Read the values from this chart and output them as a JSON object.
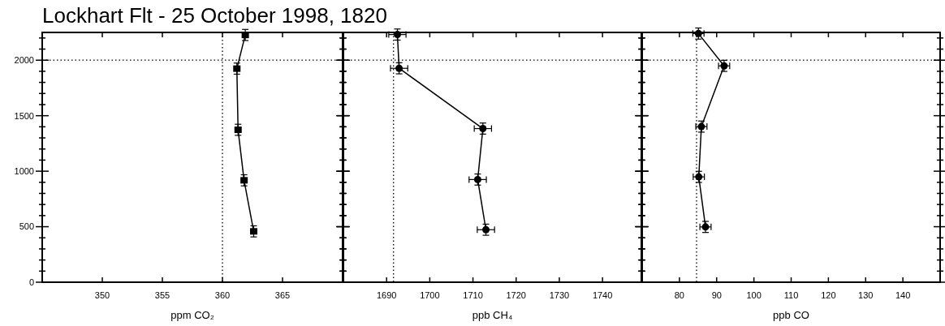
{
  "chart_data": [
    {
      "type": "line",
      "title": "Lockhart Flt - 25 October 1998, 1820",
      "xlabel": "ppm CO₂",
      "marker": "square",
      "line_style": "solid",
      "xlim": [
        345,
        370
      ],
      "xticks": [
        350,
        355,
        360,
        365
      ],
      "ylim": [
        0,
        2250
      ],
      "yticks": [
        0,
        {
          "value": 100,
          "label": null
        },
        {
          "value": 200,
          "label": null
        },
        {
          "value": 300,
          "label": null
        },
        {
          "value": 400,
          "label": null
        },
        500,
        {
          "value": 600,
          "label": null
        },
        {
          "value": 700,
          "label": null
        },
        {
          "value": 800,
          "label": null
        },
        {
          "value": 900,
          "label": null
        },
        1000,
        {
          "value": 1100,
          "label": null
        },
        {
          "value": 1200,
          "label": null
        },
        {
          "value": 1300,
          "label": null
        },
        {
          "value": 1400,
          "label": null
        },
        1500,
        {
          "value": 1600,
          "label": null
        },
        {
          "value": 1700,
          "label": null
        },
        {
          "value": 1800,
          "label": null
        },
        {
          "value": 1900,
          "label": null
        },
        2000,
        {
          "value": 2100,
          "label": null
        },
        {
          "value": 2200,
          "label": null
        }
      ],
      "ref_lines": [
        {
          "axis": "x",
          "value": 360,
          "line_style": "dotted"
        },
        {
          "axis": "y",
          "value": 2000,
          "line_style": "dotted"
        }
      ],
      "series": [
        {
          "color": "#000000",
          "x": [
            361.9,
            361.2,
            361.3,
            361.8,
            362.6
          ],
          "values": [
            2227,
            1924,
            1373,
            918,
            458
          ],
          "errors": [
            50,
            50,
            50,
            50,
            50
          ]
        }
      ]
    },
    {
      "type": "line",
      "xlabel": "ppb CH₄",
      "marker": "circle",
      "line_style": "solid",
      "tick_labels": "x",
      "xlim": [
        1680,
        1749
      ],
      "xticks": [
        1690,
        1700,
        1710,
        1720,
        1730,
        1740
      ],
      "ylim": [
        0,
        2250
      ],
      "yticks": [
        {
          "value": 0,
          "label": null
        },
        {
          "value": 100,
          "label": null
        },
        {
          "value": 200,
          "label": null
        },
        {
          "value": 300,
          "label": null
        },
        {
          "value": 400,
          "label": null
        },
        {
          "value": 500,
          "label": null
        },
        {
          "value": 600,
          "label": null
        },
        {
          "value": 700,
          "label": null
        },
        {
          "value": 800,
          "label": null
        },
        {
          "value": 900,
          "label": null
        },
        {
          "value": 1000,
          "label": null
        },
        {
          "value": 1100,
          "label": null
        },
        {
          "value": 1200,
          "label": null
        },
        {
          "value": 1300,
          "label": null
        },
        {
          "value": 1400,
          "label": null
        },
        {
          "value": 1500,
          "label": null
        },
        {
          "value": 1600,
          "label": null
        },
        {
          "value": 1700,
          "label": null
        },
        {
          "value": 1800,
          "label": null
        },
        {
          "value": 1900,
          "label": null
        },
        {
          "value": 2000,
          "label": null
        },
        {
          "value": 2100,
          "label": null
        },
        {
          "value": 2200,
          "label": null
        }
      ],
      "ref_lines": [
        {
          "axis": "x",
          "value": 1691.6,
          "line_style": "dotted"
        },
        {
          "axis": "y",
          "value": 2000,
          "line_style": "dotted"
        }
      ],
      "series": [
        {
          "color": "#000000",
          "x": [
            1692.5,
            1692.9,
            1712.3,
            1711.1,
            1713.0
          ],
          "values": [
            2231,
            1927,
            1384,
            925,
            473
          ],
          "errors": [
            50,
            50,
            50,
            50,
            50
          ],
          "xerrors": [
            2,
            2,
            2,
            2,
            2
          ]
        }
      ]
    },
    {
      "type": "line",
      "xlabel": "ppb CO",
      "marker": "circle",
      "line_style": "solid",
      "tick_labels": "x",
      "xlim": [
        70,
        150
      ],
      "xticks": [
        80,
        90,
        100,
        110,
        120,
        130,
        140
      ],
      "ylim": [
        0,
        2250
      ],
      "yticks": [
        {
          "value": 0,
          "label": null
        },
        {
          "value": 100,
          "label": null
        },
        {
          "value": 200,
          "label": null
        },
        {
          "value": 300,
          "label": null
        },
        {
          "value": 400,
          "label": null
        },
        {
          "value": 500,
          "label": null
        },
        {
          "value": 600,
          "label": null
        },
        {
          "value": 700,
          "label": null
        },
        {
          "value": 800,
          "label": null
        },
        {
          "value": 900,
          "label": null
        },
        {
          "value": 1000,
          "label": null
        },
        {
          "value": 1100,
          "label": null
        },
        {
          "value": 1200,
          "label": null
        },
        {
          "value": 1300,
          "label": null
        },
        {
          "value": 1400,
          "label": null
        },
        {
          "value": 1500,
          "label": null
        },
        {
          "value": 1600,
          "label": null
        },
        {
          "value": 1700,
          "label": null
        },
        {
          "value": 1800,
          "label": null
        },
        {
          "value": 1900,
          "label": null
        },
        {
          "value": 2000,
          "label": null
        },
        {
          "value": 2100,
          "label": null
        },
        {
          "value": 2200,
          "label": null
        }
      ],
      "ref_lines": [
        {
          "axis": "x",
          "value": 84.6,
          "line_style": "dotted"
        },
        {
          "axis": "y",
          "value": 2000,
          "line_style": "dotted"
        }
      ],
      "series": [
        {
          "color": "#000000",
          "x": [
            85.1,
            92.0,
            85.9,
            85.2,
            87.0
          ],
          "values": [
            2240,
            1949,
            1402,
            949,
            498
          ],
          "errors": [
            50,
            50,
            50,
            50,
            50
          ],
          "xerrors": [
            1.5,
            1.5,
            1.5,
            1.5,
            1.5
          ]
        }
      ]
    }
  ]
}
